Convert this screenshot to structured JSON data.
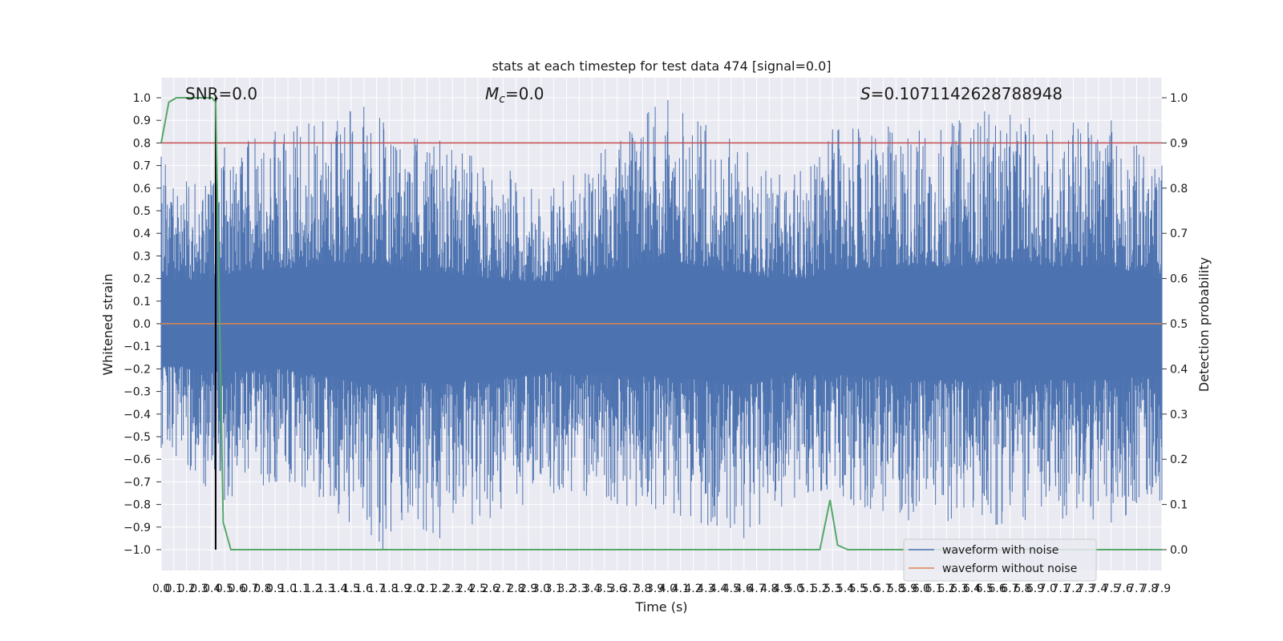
{
  "chart_data": {
    "type": "line",
    "title": "stats at each timestep for test data 474 [signal=0.0]",
    "xlabel": "Time (s)",
    "ylabel_left": "Whitened strain",
    "ylabel_right": "Detection probability",
    "xlim": [
      0.0,
      7.9
    ],
    "ylim_left": [
      -1.0,
      1.0
    ],
    "ylim_right": [
      0.0,
      1.0
    ],
    "grid": true,
    "legend_position": "lower right",
    "x_ticks": [
      "0.0",
      "0.1",
      "0.2",
      "0.3",
      "0.4",
      "0.5",
      "0.6",
      "0.7",
      "0.8",
      "0.9",
      "1.0",
      "1.1",
      "1.2",
      "1.3",
      "1.4",
      "1.5",
      "1.6",
      "1.7",
      "1.8",
      "1.9",
      "2.0",
      "2.1",
      "2.2",
      "2.3",
      "2.4",
      "2.5",
      "2.6",
      "2.7",
      "2.8",
      "2.9",
      "3.0",
      "3.1",
      "3.2",
      "3.3",
      "3.4",
      "3.5",
      "3.6",
      "3.7",
      "3.8",
      "3.9",
      "4.0",
      "4.1",
      "4.2",
      "4.3",
      "4.4",
      "4.5",
      "4.6",
      "4.7",
      "4.8",
      "4.9",
      "5.0",
      "5.1",
      "5.2",
      "5.3",
      "5.4",
      "5.5",
      "5.6",
      "5.7",
      "5.8",
      "5.9",
      "6.0",
      "6.1",
      "6.2",
      "6.3",
      "6.4",
      "6.5",
      "6.6",
      "6.7",
      "6.8",
      "6.9",
      "7.0",
      "7.1",
      "7.2",
      "7.3",
      "7.4",
      "7.5",
      "7.6",
      "7.7",
      "7.8",
      "7.9"
    ],
    "y_ticks_left": [
      "−1.0",
      "−0.9",
      "−0.8",
      "−0.7",
      "−0.6",
      "−0.5",
      "−0.4",
      "−0.3",
      "−0.2",
      "−0.1",
      "0.0",
      "0.1",
      "0.2",
      "0.3",
      "0.4",
      "0.5",
      "0.6",
      "0.7",
      "0.8",
      "0.9",
      "1.0"
    ],
    "y_ticks_right": [
      "0.0",
      "0.1",
      "0.2",
      "0.3",
      "0.4",
      "0.5",
      "0.6",
      "0.7",
      "0.8",
      "0.9",
      "1.0"
    ],
    "annotations": {
      "snr": "SNR=0.0",
      "mc": "=0.0",
      "mc_symbol": "M",
      "mc_subscript": "c",
      "s": "=0.1071142628788948",
      "s_symbol": "S"
    },
    "threshold_line": {
      "axis": "right",
      "value": 0.9,
      "color": "#c44e52"
    },
    "vertical_marker": {
      "x": 0.43,
      "color": "#000000"
    },
    "series": [
      {
        "name": "waveform with noise",
        "axis": "left",
        "color": "#4c72b0",
        "kind": "noise",
        "upper_envelope": [
          [
            0.0,
            0.74
          ],
          [
            0.2,
            0.63
          ],
          [
            0.35,
            0.61
          ],
          [
            0.5,
            0.78
          ],
          [
            0.9,
            0.85
          ],
          [
            1.6,
            0.96
          ],
          [
            2.0,
            0.82
          ],
          [
            2.2,
            0.81
          ],
          [
            3.1,
            0.6
          ],
          [
            3.9,
            0.96
          ],
          [
            4.0,
            0.99
          ],
          [
            4.3,
            0.88
          ],
          [
            5.0,
            0.66
          ],
          [
            5.3,
            0.86
          ],
          [
            6.3,
            0.9
          ],
          [
            6.5,
            0.94
          ],
          [
            7.2,
            0.89
          ],
          [
            7.5,
            0.9
          ],
          [
            7.7,
            0.79
          ],
          [
            7.9,
            0.7
          ]
        ],
        "lower_envelope": [
          [
            0.0,
            -0.55
          ],
          [
            0.35,
            -0.72
          ],
          [
            0.5,
            -0.78
          ],
          [
            0.9,
            -0.7
          ],
          [
            1.4,
            -0.84
          ],
          [
            1.75,
            -1.0
          ],
          [
            1.9,
            -0.87
          ],
          [
            2.2,
            -0.95
          ],
          [
            3.1,
            -0.75
          ],
          [
            4.1,
            -0.85
          ],
          [
            4.6,
            -0.95
          ],
          [
            5.0,
            -0.77
          ],
          [
            5.6,
            -0.82
          ],
          [
            5.9,
            -0.87
          ],
          [
            6.6,
            -0.89
          ],
          [
            7.5,
            -0.88
          ],
          [
            7.9,
            -0.78
          ]
        ]
      },
      {
        "name": "waveform without noise",
        "axis": "left",
        "color": "#dd8452",
        "x": [
          0.0,
          7.9
        ],
        "values": [
          0.0,
          0.0
        ]
      },
      {
        "name": "",
        "axis": "right",
        "color": "#55a868",
        "x": [
          0.0,
          0.06,
          0.12,
          0.4,
          0.43,
          0.49,
          0.55,
          5.2,
          5.28,
          5.34,
          5.42,
          7.9
        ],
        "values": [
          0.9,
          0.99,
          1.0,
          1.0,
          0.99,
          0.06,
          0.0,
          0.0,
          0.11,
          0.01,
          0.0,
          0.0
        ]
      }
    ]
  }
}
